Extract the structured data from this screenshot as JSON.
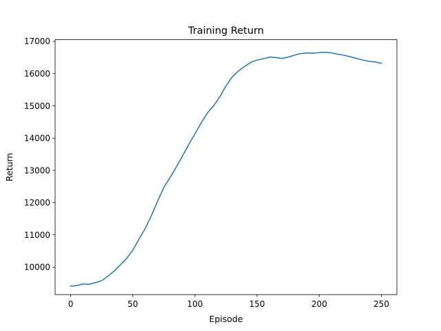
{
  "chart_data": {
    "type": "line",
    "title": "Training Return",
    "xlabel": "Episode",
    "ylabel": "Return",
    "xlim": [
      -12.5,
      262.5
    ],
    "ylim": [
      9150,
      17050
    ],
    "xticks": [
      0,
      50,
      100,
      150,
      200,
      250
    ],
    "yticks": [
      10000,
      11000,
      12000,
      13000,
      14000,
      15000,
      16000,
      17000
    ],
    "grid": false,
    "legend": "none",
    "series": [
      {
        "color": "#1f77b4",
        "x": [
          0,
          5,
          10,
          15,
          20,
          25,
          30,
          35,
          40,
          45,
          50,
          55,
          60,
          65,
          70,
          75,
          80,
          85,
          90,
          95,
          100,
          105,
          110,
          115,
          120,
          125,
          130,
          135,
          140,
          145,
          150,
          155,
          160,
          165,
          170,
          175,
          180,
          185,
          190,
          195,
          200,
          205,
          210,
          215,
          220,
          225,
          230,
          235,
          240,
          245,
          250
        ],
        "y": [
          9410,
          9430,
          9480,
          9470,
          9520,
          9580,
          9720,
          9880,
          10070,
          10270,
          10530,
          10870,
          11200,
          11600,
          12050,
          12470,
          12780,
          13100,
          13450,
          13800,
          14130,
          14470,
          14780,
          15000,
          15280,
          15620,
          15900,
          16080,
          16220,
          16350,
          16420,
          16460,
          16510,
          16500,
          16470,
          16510,
          16570,
          16620,
          16640,
          16630,
          16650,
          16660,
          16640,
          16600,
          16570,
          16520,
          16470,
          16420,
          16380,
          16360,
          16320
        ]
      }
    ]
  }
}
